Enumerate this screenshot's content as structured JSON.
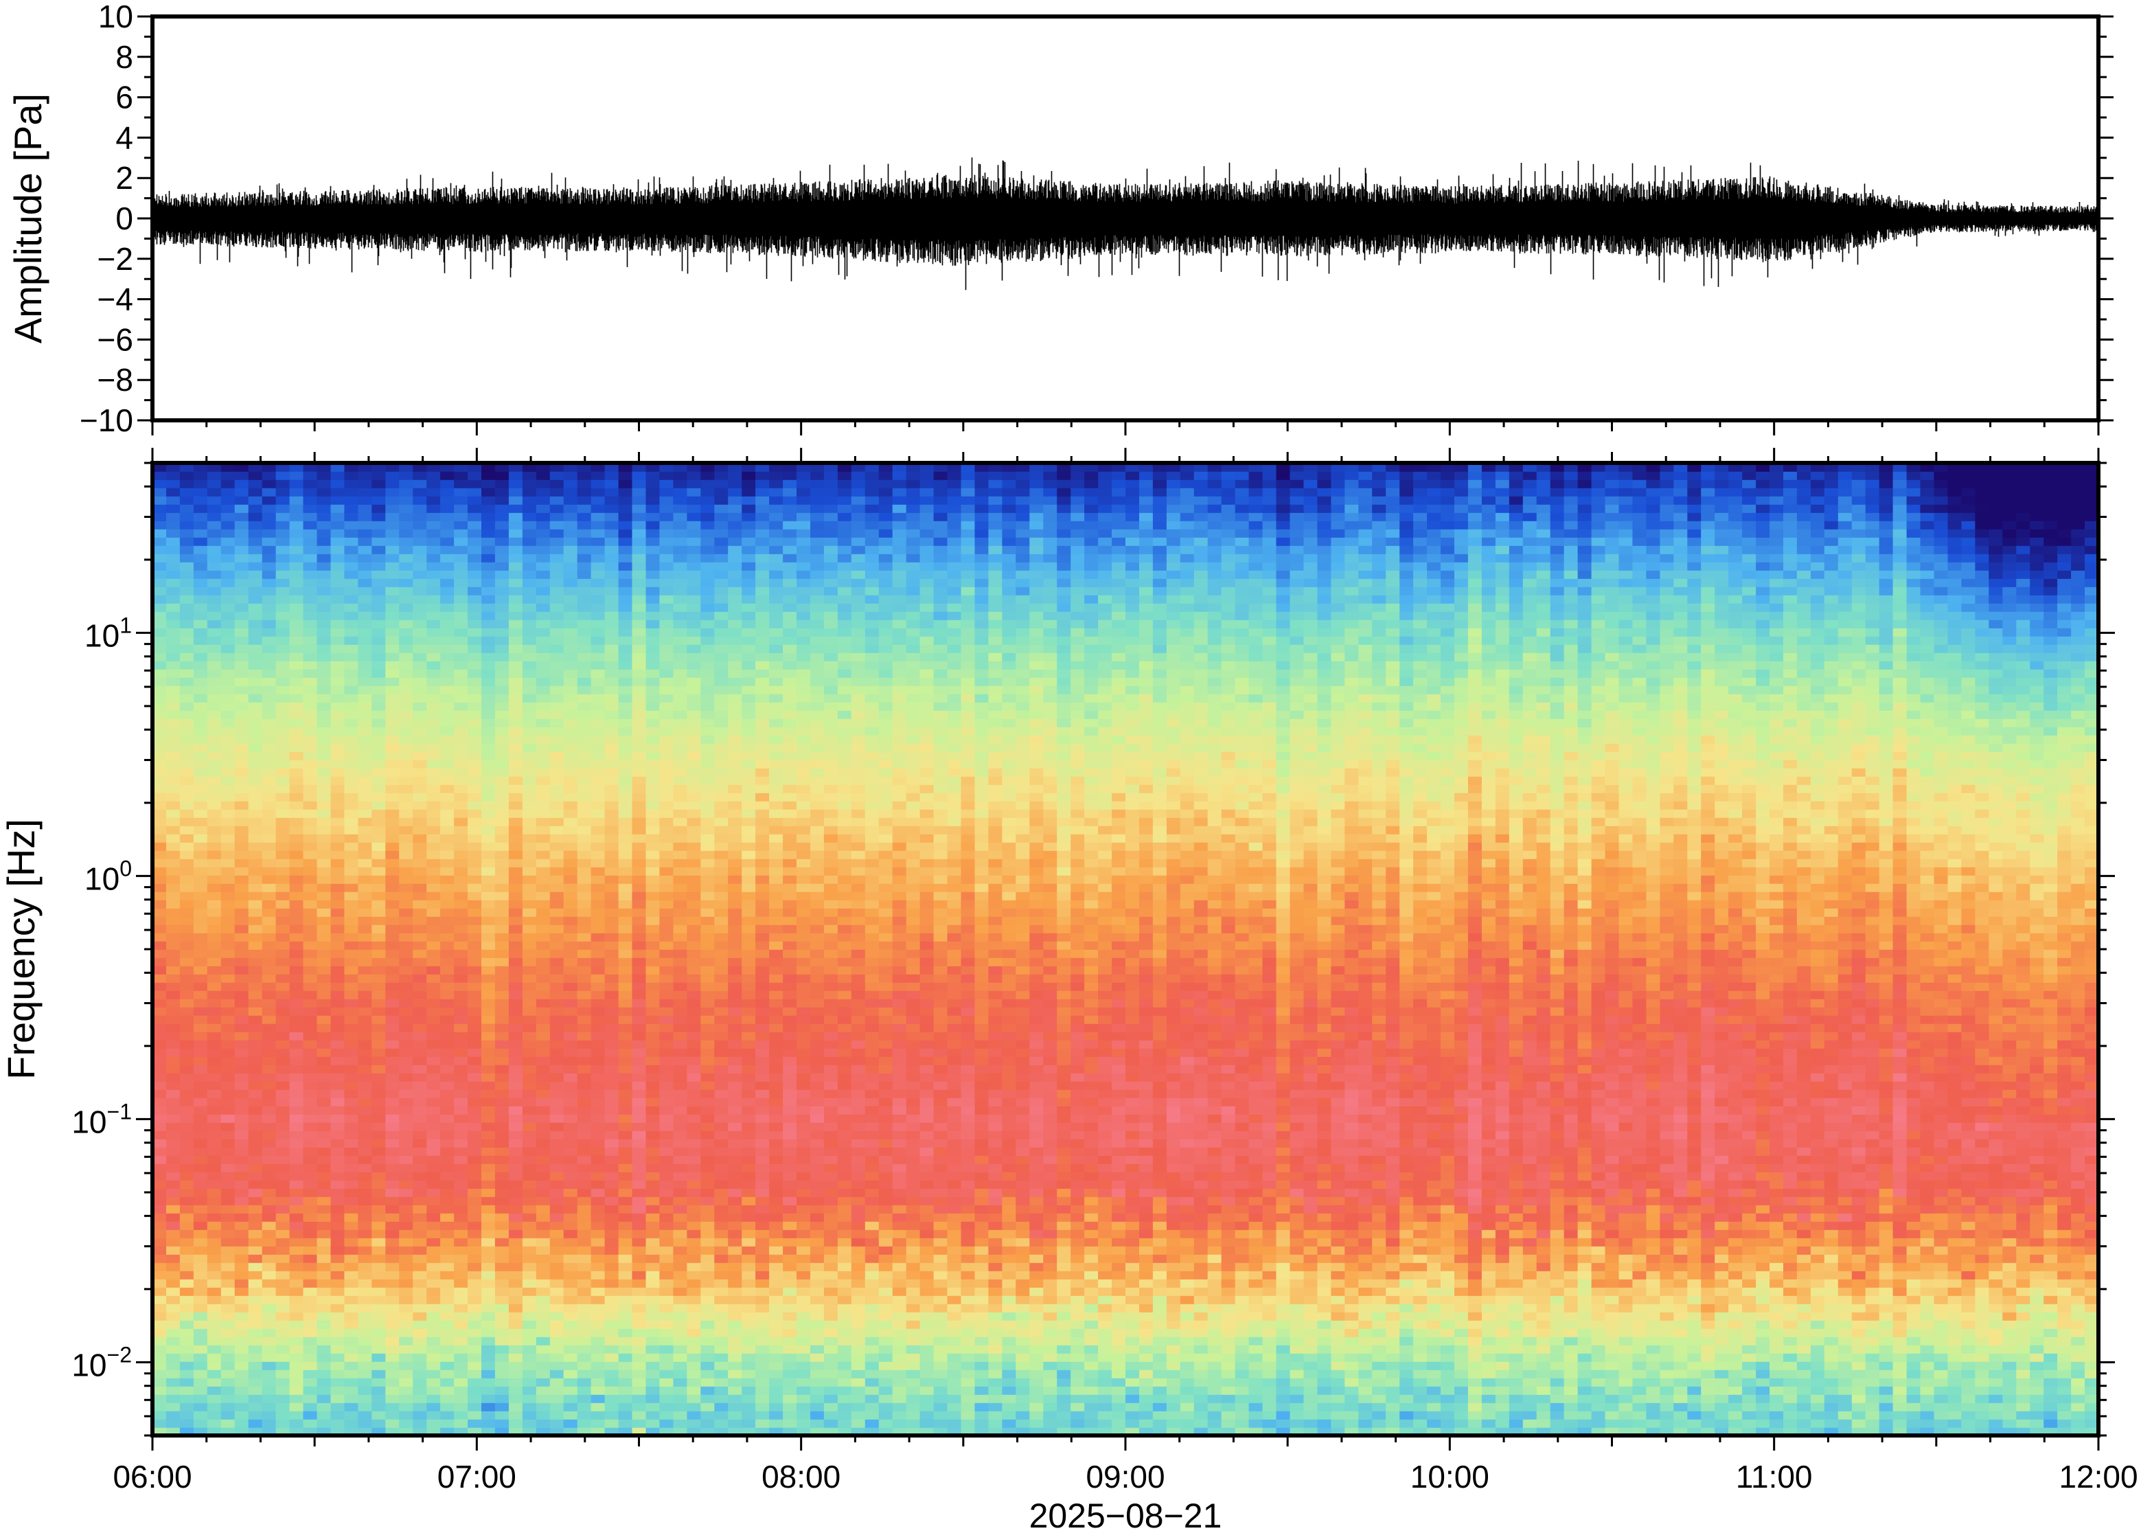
{
  "chart_data": [
    {
      "type": "line",
      "panel": "waveform",
      "xlabel": "",
      "ylabel": "Amplitude [Pa]",
      "ylim": [
        -10,
        10
      ],
      "yticks": [
        -10,
        -8,
        -6,
        -4,
        -2,
        0,
        2,
        4,
        6,
        8,
        10
      ],
      "ytick_labels": [
        "−10",
        "−8",
        "−6",
        "−4",
        "−2",
        "0",
        "2",
        "4",
        "6",
        "8",
        "10"
      ],
      "xlim": [
        "06:00",
        "12:00"
      ],
      "grid": false,
      "line_color": "#000000",
      "series": [
        {
          "x_hours": [
            6.0,
            6.5,
            7.0,
            7.5,
            8.0,
            8.5,
            9.0,
            9.5,
            10.0,
            10.5,
            11.0,
            11.5,
            12.0
          ],
          "envelope_max": [
            1.2,
            1.4,
            1.6,
            1.5,
            1.8,
            2.2,
            1.7,
            1.9,
            1.6,
            1.8,
            2.1,
            0.7,
            0.6
          ],
          "envelope_min": [
            -1.3,
            -1.5,
            -1.7,
            -1.6,
            -1.9,
            -2.4,
            -1.8,
            -1.9,
            -1.7,
            -1.8,
            -2.2,
            -0.7,
            -0.6
          ],
          "peak_max": [
            1.8,
            2.2,
            2.4,
            2.1,
            2.6,
            3.2,
            2.4,
            3.0,
            2.6,
            3.0,
            2.9,
            1.0,
            0.8
          ],
          "peak_min": [
            -2.2,
            -2.6,
            -3.4,
            -2.6,
            -3.2,
            -4.0,
            -2.8,
            -3.4,
            -2.8,
            -3.2,
            -4.0,
            -1.1,
            -0.9
          ]
        }
      ]
    },
    {
      "type": "heatmap",
      "panel": "spectrogram",
      "xlabel": "2025−08−21",
      "ylabel": "Frequency [Hz]",
      "yscale": "log",
      "ylim": [
        0.005,
        50
      ],
      "yticks": [
        0.01,
        0.1,
        1,
        10
      ],
      "ytick_labels": [
        {
          "base": "10",
          "exp": "−2"
        },
        {
          "base": "10",
          "exp": "−1"
        },
        {
          "base": "10",
          "exp": "0"
        },
        {
          "base": "10",
          "exp": "1"
        }
      ],
      "xlim": [
        "06:00",
        "12:00"
      ],
      "xticks": [
        "06:00",
        "07:00",
        "08:00",
        "09:00",
        "10:00",
        "11:00",
        "12:00"
      ],
      "colormap": [
        "#1a0a6e",
        "#1a4fd6",
        "#4fb3f0",
        "#7fe0c6",
        "#c8f29a",
        "#f6e48a",
        "#f9a14a",
        "#f06050",
        "#f57a86"
      ],
      "power_vs_frequency_hz": {
        "frequency": [
          0.006,
          0.01,
          0.02,
          0.05,
          0.1,
          0.3,
          1,
          3,
          10,
          30,
          50
        ],
        "level": [
          0.35,
          0.45,
          0.68,
          0.88,
          0.93,
          0.85,
          0.72,
          0.58,
          0.38,
          0.16,
          0.05
        ]
      },
      "quieter_after": "11:25"
    }
  ],
  "xaxis": {
    "tick_labels": [
      "06:00",
      "07:00",
      "08:00",
      "09:00",
      "10:00",
      "11:00",
      "12:00"
    ],
    "date_label": "2025−08−21"
  }
}
